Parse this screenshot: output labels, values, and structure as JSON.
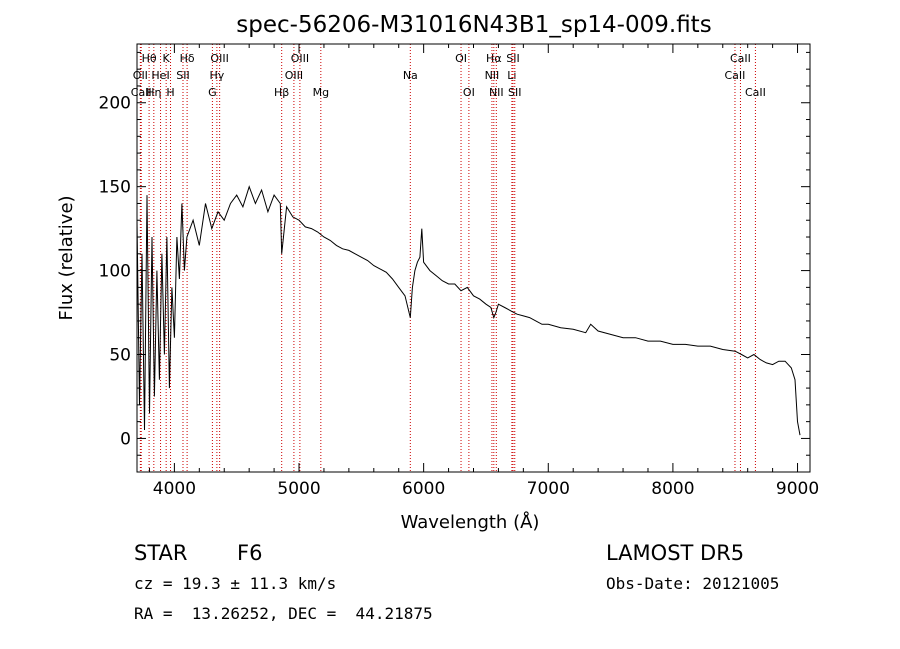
{
  "chart_data": {
    "type": "line",
    "title": "spec-56206-M31016N43B1_sp14-009.fits",
    "xlabel": "Wavelength (Å)",
    "ylabel": "Flux (relative)",
    "xlim": [
      3700,
      9100
    ],
    "ylim": [
      -20,
      235
    ],
    "xticks": [
      4000,
      5000,
      6000,
      7000,
      8000,
      9000
    ],
    "yticks": [
      0,
      50,
      100,
      150,
      200
    ],
    "series": [
      {
        "x": [
          3700,
          3720,
          3740,
          3760,
          3780,
          3800,
          3820,
          3840,
          3860,
          3880,
          3900,
          3920,
          3940,
          3960,
          3980,
          4000,
          4020,
          4040,
          4060,
          4080,
          4100,
          4150,
          4200,
          4250,
          4300,
          4350,
          4400,
          4450,
          4500,
          4550,
          4600,
          4650,
          4700,
          4750,
          4800,
          4850,
          4861,
          4900,
          4950,
          5000,
          5050,
          5100,
          5150,
          5200,
          5250,
          5300,
          5350,
          5400,
          5450,
          5500,
          5550,
          5600,
          5650,
          5700,
          5750,
          5800,
          5850,
          5893,
          5910,
          5930,
          5950,
          5970,
          5985,
          6000,
          6050,
          6100,
          6150,
          6200,
          6250,
          6300,
          6350,
          6400,
          6450,
          6500,
          6540,
          6563,
          6580,
          6600,
          6650,
          6700,
          6750,
          6800,
          6850,
          6900,
          6950,
          7000,
          7100,
          7200,
          7300,
          7340,
          7400,
          7500,
          7600,
          7700,
          7800,
          7900,
          8000,
          8100,
          8200,
          8300,
          8400,
          8500,
          8550,
          8600,
          8650,
          8700,
          8750,
          8800,
          8850,
          8900,
          8950,
          8980,
          9000,
          9020
        ],
        "y": [
          130,
          20,
          110,
          5,
          145,
          15,
          120,
          25,
          100,
          35,
          110,
          50,
          120,
          30,
          90,
          60,
          120,
          95,
          140,
          100,
          120,
          130,
          115,
          140,
          125,
          135,
          130,
          140,
          145,
          138,
          150,
          140,
          148,
          135,
          145,
          140,
          110,
          138,
          132,
          130,
          126,
          125,
          123,
          120,
          118,
          115,
          113,
          112,
          110,
          108,
          106,
          103,
          101,
          99,
          95,
          90,
          85,
          72,
          90,
          100,
          105,
          108,
          125,
          105,
          100,
          97,
          94,
          92,
          92,
          88,
          90,
          85,
          83,
          80,
          78,
          72,
          75,
          80,
          78,
          76,
          74,
          73,
          72,
          70,
          68,
          68,
          66,
          65,
          63,
          68,
          64,
          62,
          60,
          60,
          58,
          58,
          56,
          56,
          55,
          55,
          53,
          52,
          50,
          48,
          50,
          47,
          45,
          44,
          46,
          46,
          42,
          35,
          10,
          2
        ]
      }
    ],
    "lines": [
      {
        "label": "Hθ",
        "x": 3797,
        "row": 0
      },
      {
        "label": "OII",
        "x": 3727,
        "row": 1
      },
      {
        "label": "CaII",
        "x": 3734,
        "row": 2
      },
      {
        "label": "Hη",
        "x": 3835,
        "row": 2
      },
      {
        "label": "HeI",
        "x": 3889,
        "row": 1
      },
      {
        "label": "K",
        "x": 3934,
        "row": 0
      },
      {
        "label": "H",
        "x": 3969,
        "row": 2
      },
      {
        "label": "Hδ",
        "x": 4102,
        "row": 0
      },
      {
        "label": "SII",
        "x": 4069,
        "row": 1
      },
      {
        "label": "OIII",
        "x": 4363,
        "row": 0
      },
      {
        "label": "Hγ",
        "x": 4341,
        "row": 1
      },
      {
        "label": "G",
        "x": 4305,
        "row": 2
      },
      {
        "label": "OIII",
        "x": 5007,
        "row": 0
      },
      {
        "label": "OIII",
        "x": 4959,
        "row": 1
      },
      {
        "label": "Hβ",
        "x": 4861,
        "row": 2
      },
      {
        "label": "Mg",
        "x": 5175,
        "row": 2
      },
      {
        "label": "Na",
        "x": 5893,
        "row": 1
      },
      {
        "label": "OI",
        "x": 6300,
        "row": 0
      },
      {
        "label": "OI",
        "x": 6363,
        "row": 2
      },
      {
        "label": "Hα",
        "x": 6563,
        "row": 0
      },
      {
        "label": "NII",
        "x": 6548,
        "row": 1
      },
      {
        "label": "NII",
        "x": 6583,
        "row": 2
      },
      {
        "label": "SII",
        "x": 6717,
        "row": 0
      },
      {
        "label": "Li",
        "x": 6708,
        "row": 1
      },
      {
        "label": "SII",
        "x": 6731,
        "row": 2
      },
      {
        "label": "CaII",
        "x": 8542,
        "row": 0
      },
      {
        "label": "CaII",
        "x": 8498,
        "row": 1
      },
      {
        "label": "CaII",
        "x": 8662,
        "row": 2
      }
    ]
  },
  "info": {
    "object_class": "STAR",
    "subclass": "F6",
    "survey": "LAMOST DR5",
    "redshift": "cz = 19.3 ± 11.3 km/s",
    "obs_date": "Obs-Date: 20121005",
    "coords": "RA =  13.26252, DEC =  44.21875"
  },
  "colors": {
    "spectrum": "#000000",
    "line_markers": "#cc0000"
  }
}
